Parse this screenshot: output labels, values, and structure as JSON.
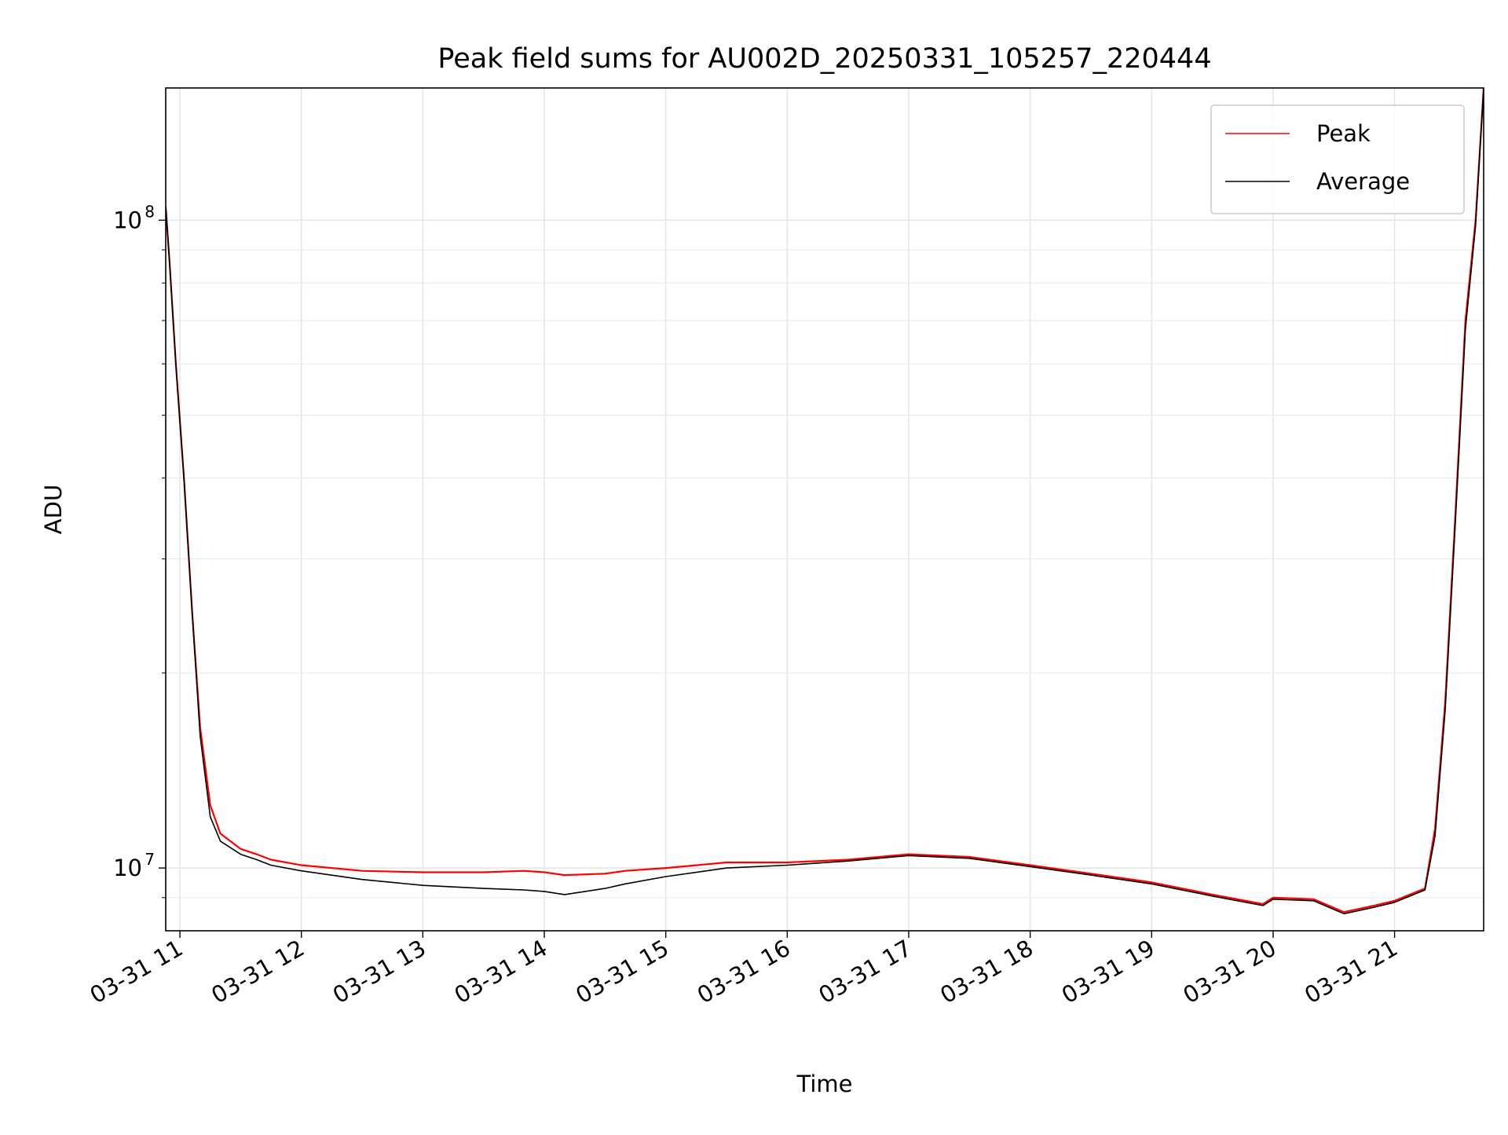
{
  "chart_data": {
    "type": "line",
    "title": "Peak field sums for AU002D_20250331_105257_220444",
    "xlabel": "Time",
    "ylabel": "ADU",
    "y_scale": "log",
    "ylim": [
      8000000,
      160000000
    ],
    "xlim": [
      "2025-03-31 10:53",
      "2025-03-31 21:44"
    ],
    "x_ticks": [
      "03-31 11",
      "03-31 12",
      "03-31 13",
      "03-31 14",
      "03-31 15",
      "03-31 16",
      "03-31 17",
      "03-31 18",
      "03-31 19",
      "03-31 20",
      "03-31 21"
    ],
    "x_tick_times": [
      "2025-03-31 11:00",
      "2025-03-31 12:00",
      "2025-03-31 13:00",
      "2025-03-31 14:00",
      "2025-03-31 15:00",
      "2025-03-31 16:00",
      "2025-03-31 17:00",
      "2025-03-31 18:00",
      "2025-03-31 19:00",
      "2025-03-31 20:00",
      "2025-03-31 21:00"
    ],
    "y_ticks": [
      {
        "base": "10",
        "exp": "7",
        "value": 10000000
      },
      {
        "base": "10",
        "exp": "8",
        "value": 100000000
      }
    ],
    "grid": true,
    "legend_position": "top-right",
    "series": [
      {
        "name": "Peak",
        "color": "#ff0000",
        "x": [
          "2025-03-31 10:53",
          "2025-03-31 10:55",
          "2025-03-31 10:58",
          "2025-03-31 11:02",
          "2025-03-31 11:06",
          "2025-03-31 11:10",
          "2025-03-31 11:15",
          "2025-03-31 11:20",
          "2025-03-31 11:30",
          "2025-03-31 11:38",
          "2025-03-31 11:45",
          "2025-03-31 12:00",
          "2025-03-31 12:30",
          "2025-03-31 13:00",
          "2025-03-31 13:30",
          "2025-03-31 13:50",
          "2025-03-31 14:00",
          "2025-03-31 14:10",
          "2025-03-31 14:30",
          "2025-03-31 14:40",
          "2025-03-31 15:00",
          "2025-03-31 15:30",
          "2025-03-31 16:00",
          "2025-03-31 16:30",
          "2025-03-31 17:00",
          "2025-03-31 17:30",
          "2025-03-31 18:00",
          "2025-03-31 18:30",
          "2025-03-31 19:00",
          "2025-03-31 19:30",
          "2025-03-31 19:55",
          "2025-03-31 20:00",
          "2025-03-31 20:20",
          "2025-03-31 20:35",
          "2025-03-31 20:50",
          "2025-03-31 21:00",
          "2025-03-31 21:15",
          "2025-03-31 21:20",
          "2025-03-31 21:25",
          "2025-03-31 21:30",
          "2025-03-31 21:35",
          "2025-03-31 21:40",
          "2025-03-31 21:44"
        ],
        "y": [
          105000000,
          85000000,
          60000000,
          40000000,
          25000000,
          16500000,
          12500000,
          11300000,
          10700000,
          10500000,
          10300000,
          10100000,
          9900000,
          9850000,
          9850000,
          9900000,
          9850000,
          9750000,
          9800000,
          9900000,
          10000000,
          10200000,
          10200000,
          10300000,
          10500000,
          10400000,
          10100000,
          9800000,
          9500000,
          9100000,
          8800000,
          9000000,
          8950000,
          8550000,
          8750000,
          8900000,
          9300000,
          11500000,
          18000000,
          35000000,
          70000000,
          100000000,
          160000000
        ]
      },
      {
        "name": "Average",
        "color": "#000000",
        "x": [
          "2025-03-31 10:53",
          "2025-03-31 10:55",
          "2025-03-31 10:58",
          "2025-03-31 11:02",
          "2025-03-31 11:06",
          "2025-03-31 11:10",
          "2025-03-31 11:15",
          "2025-03-31 11:20",
          "2025-03-31 11:30",
          "2025-03-31 11:38",
          "2025-03-31 11:45",
          "2025-03-31 12:00",
          "2025-03-31 12:30",
          "2025-03-31 13:00",
          "2025-03-31 13:30",
          "2025-03-31 13:50",
          "2025-03-31 14:00",
          "2025-03-31 14:10",
          "2025-03-31 14:30",
          "2025-03-31 14:40",
          "2025-03-31 15:00",
          "2025-03-31 15:30",
          "2025-03-31 16:00",
          "2025-03-31 16:30",
          "2025-03-31 17:00",
          "2025-03-31 17:30",
          "2025-03-31 18:00",
          "2025-03-31 18:30",
          "2025-03-31 19:00",
          "2025-03-31 19:30",
          "2025-03-31 19:55",
          "2025-03-31 20:00",
          "2025-03-31 20:20",
          "2025-03-31 20:35",
          "2025-03-31 20:50",
          "2025-03-31 21:00",
          "2025-03-31 21:15",
          "2025-03-31 21:20",
          "2025-03-31 21:25",
          "2025-03-31 21:30",
          "2025-03-31 21:35",
          "2025-03-31 21:40",
          "2025-03-31 21:44"
        ],
        "y": [
          105000000,
          85000000,
          60000000,
          40000000,
          25000000,
          16000000,
          12000000,
          11000000,
          10500000,
          10300000,
          10100000,
          9900000,
          9600000,
          9400000,
          9300000,
          9250000,
          9200000,
          9100000,
          9300000,
          9450000,
          9700000,
          10000000,
          10100000,
          10250000,
          10450000,
          10350000,
          10050000,
          9750000,
          9450000,
          9050000,
          8750000,
          8950000,
          8900000,
          8500000,
          8700000,
          8850000,
          9250000,
          11200000,
          17500000,
          34000000,
          68000000,
          98000000,
          160000000
        ]
      }
    ]
  }
}
